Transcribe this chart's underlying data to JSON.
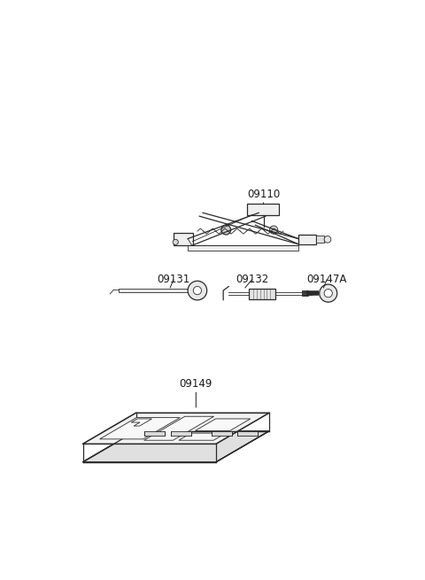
{
  "bg_color": "#ffffff",
  "line_color": "#2a2a2a",
  "label_color": "#1a1a1a",
  "font_size": 8.5
}
